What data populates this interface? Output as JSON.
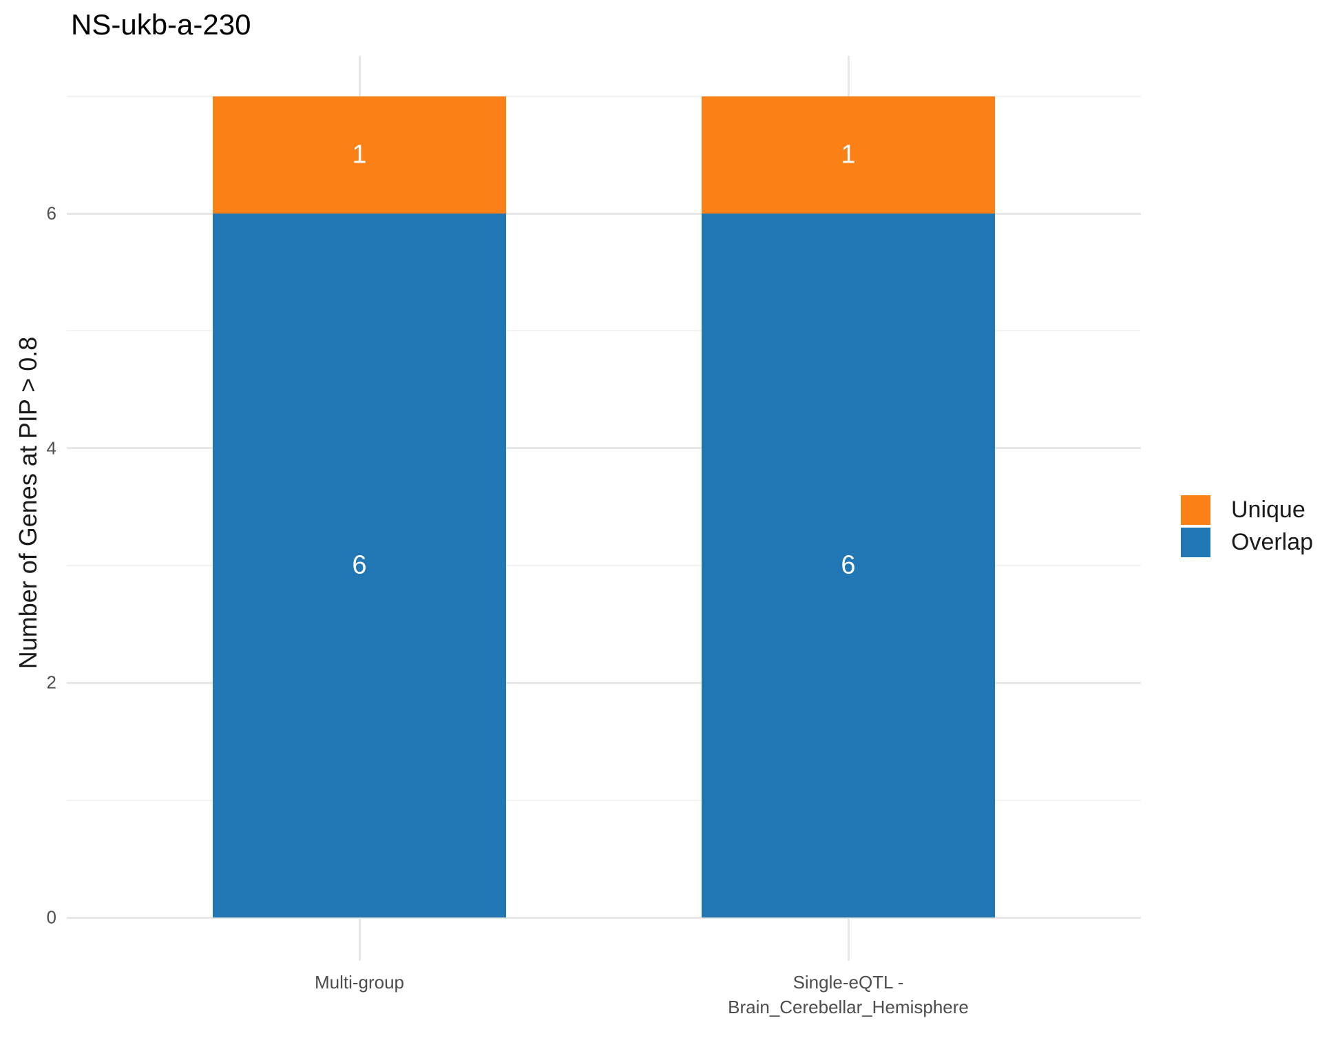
{
  "chart_data": {
    "type": "bar",
    "stacked": true,
    "title": "NS-ukb-a-230",
    "xlabel": "",
    "ylabel": "Number of Genes at PIP > 0.8",
    "categories": [
      "Multi-group",
      "Single-eQTL -\nBrain_Cerebellar_Hemisphere"
    ],
    "series": [
      {
        "name": "Overlap",
        "color": "#2077B4",
        "values": [
          6,
          6
        ]
      },
      {
        "name": "Unique",
        "color": "#FB8116",
        "values": [
          1,
          1
        ]
      }
    ],
    "stack_order_bottom_to_top": [
      "Overlap",
      "Unique"
    ],
    "bar_value_labels": {
      "show": true,
      "color": "#FFFFFF",
      "values_bottom_to_top": [
        [
          6,
          1
        ],
        [
          6,
          1
        ]
      ]
    },
    "y_axis": {
      "ticks": [
        0,
        2,
        4,
        6
      ],
      "minor_gridlines": [
        1,
        3,
        5,
        7
      ],
      "range": [
        0,
        7.35
      ]
    },
    "x_axis": {
      "gridline_at_each_category": true
    },
    "legend": {
      "position": "right",
      "entries": [
        {
          "label": "Unique",
          "color": "#FB8116"
        },
        {
          "label": "Overlap",
          "color": "#2077B4"
        }
      ]
    },
    "grid": {
      "major_color": "#E7E7E7",
      "minor_color": "#F2F2F2"
    },
    "colors": {
      "title_text": "#000000",
      "axis_text": "#4D4D4D",
      "axis_title_text": "#1A1A1A",
      "legend_text": "#1A1A1A",
      "background": "#FFFFFF"
    }
  }
}
